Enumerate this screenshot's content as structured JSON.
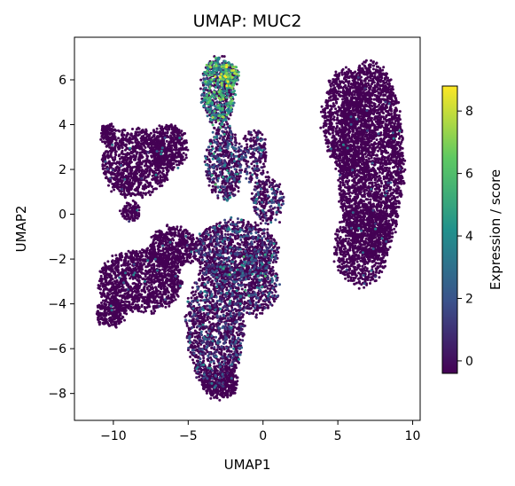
{
  "chart_data": {
    "type": "scatter",
    "title": "UMAP: MUC2",
    "xlabel": "UMAP1",
    "ylabel": "UMAP2",
    "xlim": [
      -12.6,
      10.5
    ],
    "ylim": [
      -9.2,
      7.9
    ],
    "xticks": [
      -10,
      -5,
      0,
      5,
      10
    ],
    "yticks": [
      -8,
      -6,
      -4,
      -2,
      0,
      2,
      4,
      6
    ],
    "grid": false,
    "colormap": "viridis",
    "colorbar": {
      "label": "Expression / score",
      "range": [
        -0.4,
        8.8
      ],
      "ticks": [
        0,
        2,
        4,
        6,
        8
      ],
      "colors": [
        "#440154",
        "#3b528b",
        "#21918c",
        "#5ec962",
        "#fde725"
      ]
    },
    "point_color_default": "#440154",
    "clusters": [
      {
        "cx": 7.2,
        "cy": 2.4,
        "rx": 2.2,
        "ry": 4.4,
        "n": 3000,
        "expr": 0.0
      },
      {
        "cx": 5.6,
        "cy": 4.2,
        "rx": 1.6,
        "ry": 2.3,
        "n": 900,
        "expr": 0.0
      },
      {
        "cx": 6.6,
        "cy": -1.4,
        "rx": 1.8,
        "ry": 1.8,
        "n": 800,
        "expr": 0.0
      },
      {
        "cx": -3.2,
        "cy": -5.0,
        "rx": 1.9,
        "ry": 2.8,
        "n": 1400,
        "expr": 0.1
      },
      {
        "cx": -2.9,
        "cy": -7.5,
        "rx": 1.2,
        "ry": 0.7,
        "n": 350,
        "expr": 0.0
      },
      {
        "cx": -1.8,
        "cy": -1.6,
        "rx": 2.8,
        "ry": 1.3,
        "n": 1100,
        "expr": 0.2
      },
      {
        "cx": -0.5,
        "cy": -3.2,
        "rx": 1.5,
        "ry": 1.3,
        "n": 500,
        "expr": 0.3
      },
      {
        "cx": -8.2,
        "cy": -3.0,
        "rx": 2.8,
        "ry": 1.4,
        "n": 1300,
        "expr": 0.0
      },
      {
        "cx": -10.2,
        "cy": -4.4,
        "rx": 0.9,
        "ry": 0.6,
        "n": 250,
        "expr": 0.0
      },
      {
        "cx": -6.0,
        "cy": -1.5,
        "rx": 1.6,
        "ry": 0.9,
        "n": 500,
        "expr": 0.0
      },
      {
        "cx": -8.5,
        "cy": 2.3,
        "rx": 2.3,
        "ry": 1.5,
        "n": 1000,
        "expr": 0.0
      },
      {
        "cx": -6.3,
        "cy": 3.0,
        "rx": 1.2,
        "ry": 1.0,
        "n": 450,
        "expr": 0.0
      },
      {
        "cx": -10.3,
        "cy": 3.6,
        "rx": 0.5,
        "ry": 0.4,
        "n": 120,
        "expr": 0.0
      },
      {
        "cx": -8.8,
        "cy": 0.1,
        "rx": 0.6,
        "ry": 0.4,
        "n": 110,
        "expr": 0.0
      },
      {
        "cx": -3.0,
        "cy": 5.5,
        "rx": 1.1,
        "ry": 1.5,
        "n": 650,
        "expr": 3.8
      },
      {
        "cx": -2.3,
        "cy": 6.2,
        "rx": 0.6,
        "ry": 0.6,
        "n": 220,
        "expr": 5.5
      },
      {
        "cx": -2.6,
        "cy": 2.3,
        "rx": 1.2,
        "ry": 1.7,
        "n": 550,
        "expr": 0.7
      },
      {
        "cx": -0.6,
        "cy": 2.6,
        "rx": 0.9,
        "ry": 1.2,
        "n": 200,
        "expr": 0.3
      },
      {
        "cx": 0.3,
        "cy": 0.6,
        "rx": 1.0,
        "ry": 1.0,
        "n": 250,
        "expr": 0.2
      }
    ]
  }
}
